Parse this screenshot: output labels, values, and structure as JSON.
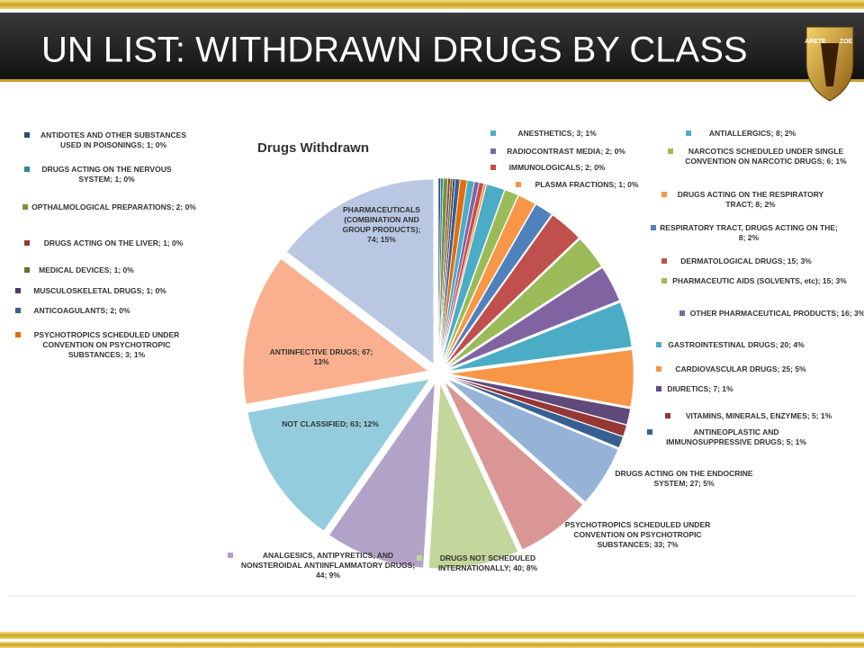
{
  "header": {
    "title": "UN LIST: WITHDRAWN DRUGS BY CLASS",
    "logo": [
      "ARETE",
      "ZOE"
    ]
  },
  "chart_data": {
    "type": "pie",
    "title": "Drugs Withdrawn",
    "values": [
      1,
      1,
      2,
      1,
      1,
      1,
      2,
      3,
      3,
      2,
      2,
      1,
      8,
      6,
      8,
      8,
      15,
      15,
      16,
      20,
      25,
      7,
      5,
      5,
      27,
      33,
      40,
      44,
      63,
      67,
      74
    ],
    "value_labels": [
      "ANTIDOTES AND OTHER SUBSTANCES USED IN POISONINGS; 1; 0%",
      "DRUGS ACTING ON THE NERVOUS SYSTEM; 1; 0%",
      "OPTHALMOLOGICAL PREPARATIONS; 2; 0%",
      "DRUGS ACTING ON THE LIVER; 1; 0%",
      "MEDICAL DEVICES; 1; 0%",
      "MUSCULOSKELETAL DRUGS; 1; 0%",
      "ANTICOAGULANTS; 2; 0%",
      "PSYCHOTROPICS SCHEDULED UNDER CONVENTION ON PSYCHOTROPIC SUBSTANCES; 3; 1%",
      "ANESTHETICS; 3; 1%",
      "RADIOCONTRAST MEDIA; 2; 0%",
      "IMMUNOLOGICALS; 2; 0%",
      "PLASMA FRACTIONS; 1; 0%",
      "ANTIALLERGICS; 8; 2%",
      "NARCOTICS SCHEDULED UNDER SINGLE CONVENTION ON NARCOTIC DRUGS; 6; 1%",
      "DRUGS ACTING ON THE RESPIRATORY TRACT; 8; 2%",
      "RESPIRATORY TRACT, DRUGS ACTING ON THE; 8; 2%",
      "DERMATOLOGICAL DRUGS; 15; 3%",
      "PHARMACEUTIC AIDS (SOLVENTS, etc); 15; 3%",
      "OTHER PHARMACEUTICAL PRODUCTS; 16; 3%",
      "GASTROINTESTINAL DRUGS; 20; 4%",
      "CARDIOVASCULAR DRUGS; 25; 5%",
      "DIURETICS; 7; 1%",
      "VITAMINS, MINERALS, ENZYMES; 5; 1%",
      "ANTINEOPLASTIC AND IMMUNOSUPPRESSIVE DRUGS; 5; 1%",
      "DRUGS ACTING ON THE ENDOCRINE SYSTEM; 27; 5%",
      "PSYCHOTROPICS SCHEDULED UNDER CONVENTION ON PSYCHOTROPIC SUBSTANCES; 33; 7%",
      "DRUGS NOT SCHEDULED INTERNATIONALLY; 40; 8%",
      "ANALGESICS, ANTIPYRETICS, AND NONSTEROIDAL ANTIINFLAMMATORY DRUGS; 44; 9%",
      "NOT CLASSIFIED; 63; 12%",
      "ANTIINFECTIVE DRUGS; 67; 13%",
      "PHARMACEUTICALS (COMBINATION AND GROUP PRODUCTS); 74; 15%"
    ],
    "colors": [
      "#2c4d75",
      "#31859c",
      "#77933c",
      "#953735",
      "#5f7530",
      "#4d3b62",
      "#3a5f8b",
      "#e46c0a",
      "#4bacc6",
      "#8064a2",
      "#c0504d",
      "#f79646",
      "#4bacc6",
      "#9bbb59",
      "#f79646",
      "#4f81bd",
      "#c0504d",
      "#9bbb59",
      "#8064a2",
      "#4bacc6",
      "#f79646",
      "#604a7b",
      "#953735",
      "#376092",
      "#95b3d7",
      "#d99694",
      "#c3d69b",
      "#b3a2c7",
      "#93cddd",
      "#fab08f",
      "#b9c7e3"
    ]
  }
}
